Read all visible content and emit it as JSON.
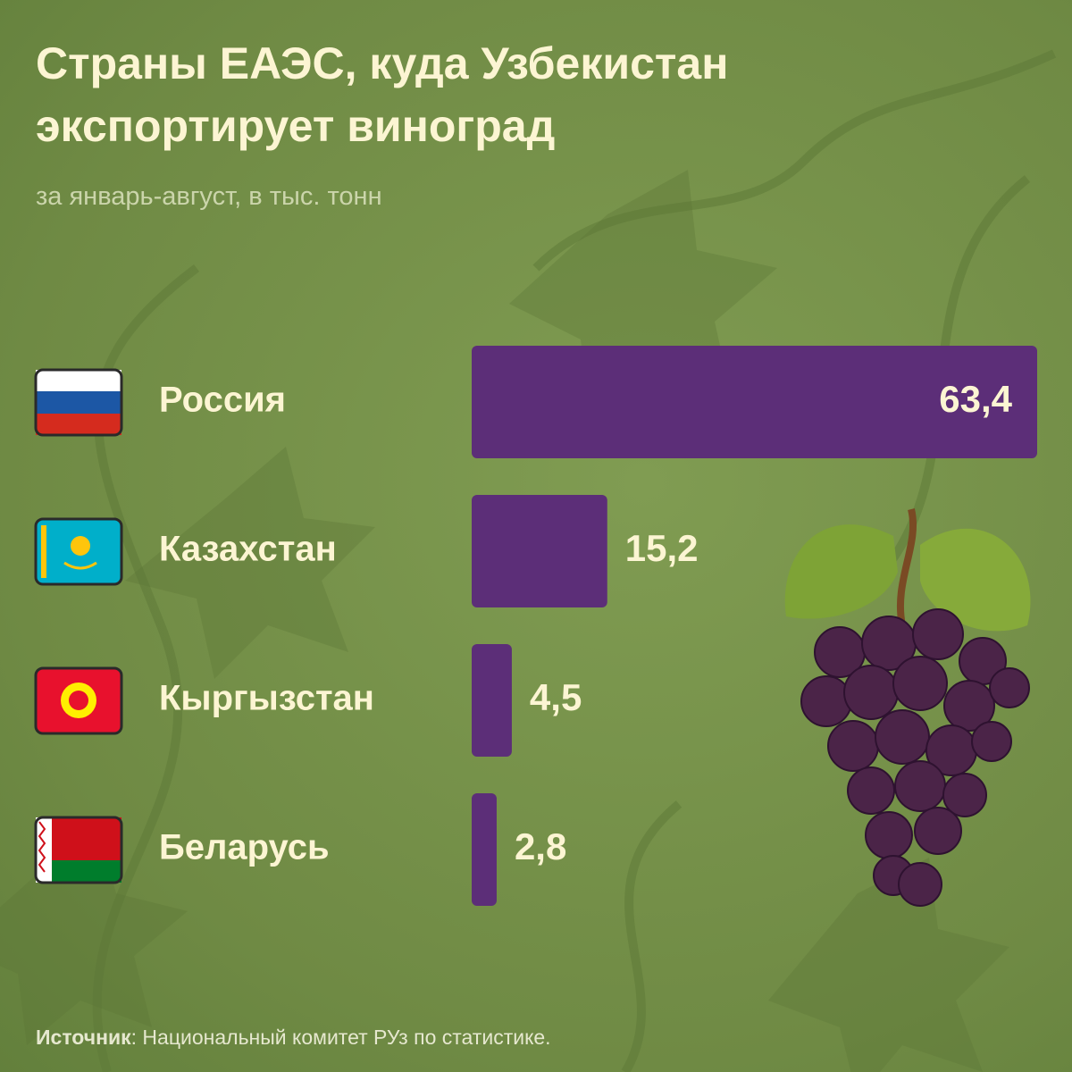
{
  "chart_data": {
    "type": "bar",
    "orientation": "horizontal",
    "title": "Страны ЕАЭС, куда Узбекистан экспортирует виноград",
    "subtitle": "за январь-август, в тыс. тонн",
    "categories": [
      "Россия",
      "Казахстан",
      "Кыргызстан",
      "Беларусь"
    ],
    "values": [
      63.4,
      15.2,
      4.5,
      2.8
    ],
    "value_labels": [
      "63,4",
      "15,2",
      "4,5",
      "2,8"
    ],
    "color": "#5c2e78",
    "source_label": "Источник",
    "source_text": ": Национальный комитет РУз по статистике."
  }
}
